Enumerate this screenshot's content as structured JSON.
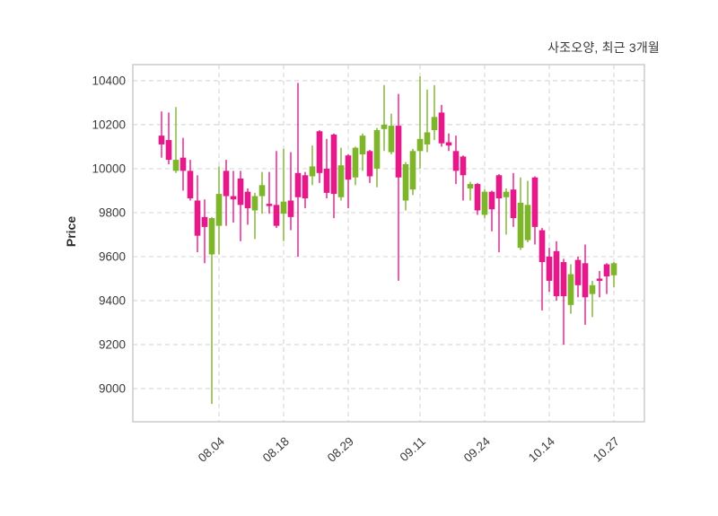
{
  "chart_data": {
    "type": "candlestick",
    "title": "사조오양, 최근 3개월",
    "ylabel": "Price",
    "xlabel": "",
    "legend": "none",
    "grid": "dashed-both-axes",
    "x_tick_labels": [
      "08.04",
      "08.18",
      "08.29",
      "09.11",
      "09.24",
      "10.14",
      "10.27"
    ],
    "x_tick_indices": [
      8,
      17,
      26,
      36,
      45,
      54,
      63
    ],
    "y_ticks": [
      9000,
      9200,
      9400,
      9600,
      9800,
      10000,
      10200,
      10400
    ],
    "ylim": [
      8849,
      10473
    ],
    "n_candles": 64,
    "colors": {
      "up": "#7eb52b",
      "down": "#e8178a",
      "grid": "#d9d9d9",
      "border": "#cccccc",
      "tick_text": "#3a3a3a"
    },
    "candles_format": [
      "open",
      "high",
      "low",
      "close"
    ],
    "candles": [
      [
        10150,
        10260,
        10050,
        10110
      ],
      [
        10130,
        10255,
        10020,
        10040
      ],
      [
        9990,
        10280,
        9980,
        10040
      ],
      [
        10050,
        10140,
        9900,
        9990
      ],
      [
        9990,
        10040,
        9855,
        9865
      ],
      [
        9855,
        9970,
        9620,
        9695
      ],
      [
        9780,
        9860,
        9570,
        9735
      ],
      [
        9610,
        9780,
        8930,
        9775
      ],
      [
        9740,
        10010,
        9610,
        9885
      ],
      [
        9990,
        10040,
        9740,
        9875
      ],
      [
        9875,
        9990,
        9755,
        9860
      ],
      [
        9955,
        9990,
        9670,
        9835
      ],
      [
        9895,
        9910,
        9745,
        9820
      ],
      [
        9810,
        9890,
        9680,
        9875
      ],
      [
        9875,
        9985,
        9795,
        9925
      ],
      [
        9840,
        9985,
        9795,
        9830
      ],
      [
        9835,
        10080,
        9730,
        9740
      ],
      [
        9795,
        10090,
        9670,
        9850
      ],
      [
        9855,
        10075,
        9720,
        9780
      ],
      [
        9980,
        10390,
        9600,
        9870
      ],
      [
        9970,
        9985,
        9820,
        9865
      ],
      [
        9965,
        10105,
        9925,
        10010
      ],
      [
        10170,
        10175,
        9935,
        9980
      ],
      [
        10000,
        10135,
        9865,
        9890
      ],
      [
        10155,
        10160,
        9775,
        9885
      ],
      [
        9870,
        10095,
        9855,
        10015
      ],
      [
        10060,
        10065,
        9820,
        9950
      ],
      [
        9960,
        10100,
        9925,
        10095
      ],
      [
        10065,
        10160,
        9990,
        10150
      ],
      [
        10080,
        10085,
        9935,
        9965
      ],
      [
        10000,
        10185,
        9915,
        10175
      ],
      [
        10180,
        10380,
        10080,
        10200
      ],
      [
        10075,
        10250,
        10065,
        10195
      ],
      [
        10195,
        10340,
        9490,
        9960
      ],
      [
        9855,
        10030,
        9810,
        10020
      ],
      [
        9905,
        10090,
        9880,
        10080
      ],
      [
        10080,
        10420,
        10000,
        10135
      ],
      [
        10110,
        10360,
        10075,
        10165
      ],
      [
        10175,
        10380,
        10130,
        10235
      ],
      [
        10255,
        10290,
        10100,
        10115
      ],
      [
        10120,
        10160,
        10080,
        10105
      ],
      [
        10080,
        10150,
        9930,
        9990
      ],
      [
        10055,
        10060,
        9855,
        9970
      ],
      [
        9910,
        9940,
        9855,
        9930
      ],
      [
        9930,
        9935,
        9790,
        9810
      ],
      [
        9790,
        9905,
        9775,
        9895
      ],
      [
        9895,
        9900,
        9715,
        9815
      ],
      [
        9970,
        9975,
        9620,
        9865
      ],
      [
        9870,
        9910,
        9700,
        9895
      ],
      [
        9905,
        9980,
        9735,
        9775
      ],
      [
        9640,
        9960,
        9630,
        9845
      ],
      [
        9675,
        9945,
        9665,
        9835
      ],
      [
        9960,
        9965,
        9655,
        9735
      ],
      [
        9720,
        9730,
        9355,
        9575
      ],
      [
        9600,
        9640,
        9440,
        9490
      ],
      [
        9625,
        9670,
        9400,
        9420
      ],
      [
        9575,
        9590,
        9200,
        9420
      ],
      [
        9380,
        9565,
        9340,
        9520
      ],
      [
        9585,
        9600,
        9415,
        9470
      ],
      [
        9570,
        9655,
        9290,
        9415
      ],
      [
        9430,
        9490,
        9325,
        9470
      ],
      [
        9500,
        9535,
        9415,
        9490
      ],
      [
        9565,
        9570,
        9430,
        9510
      ],
      [
        9515,
        9575,
        9460,
        9570
      ]
    ]
  }
}
